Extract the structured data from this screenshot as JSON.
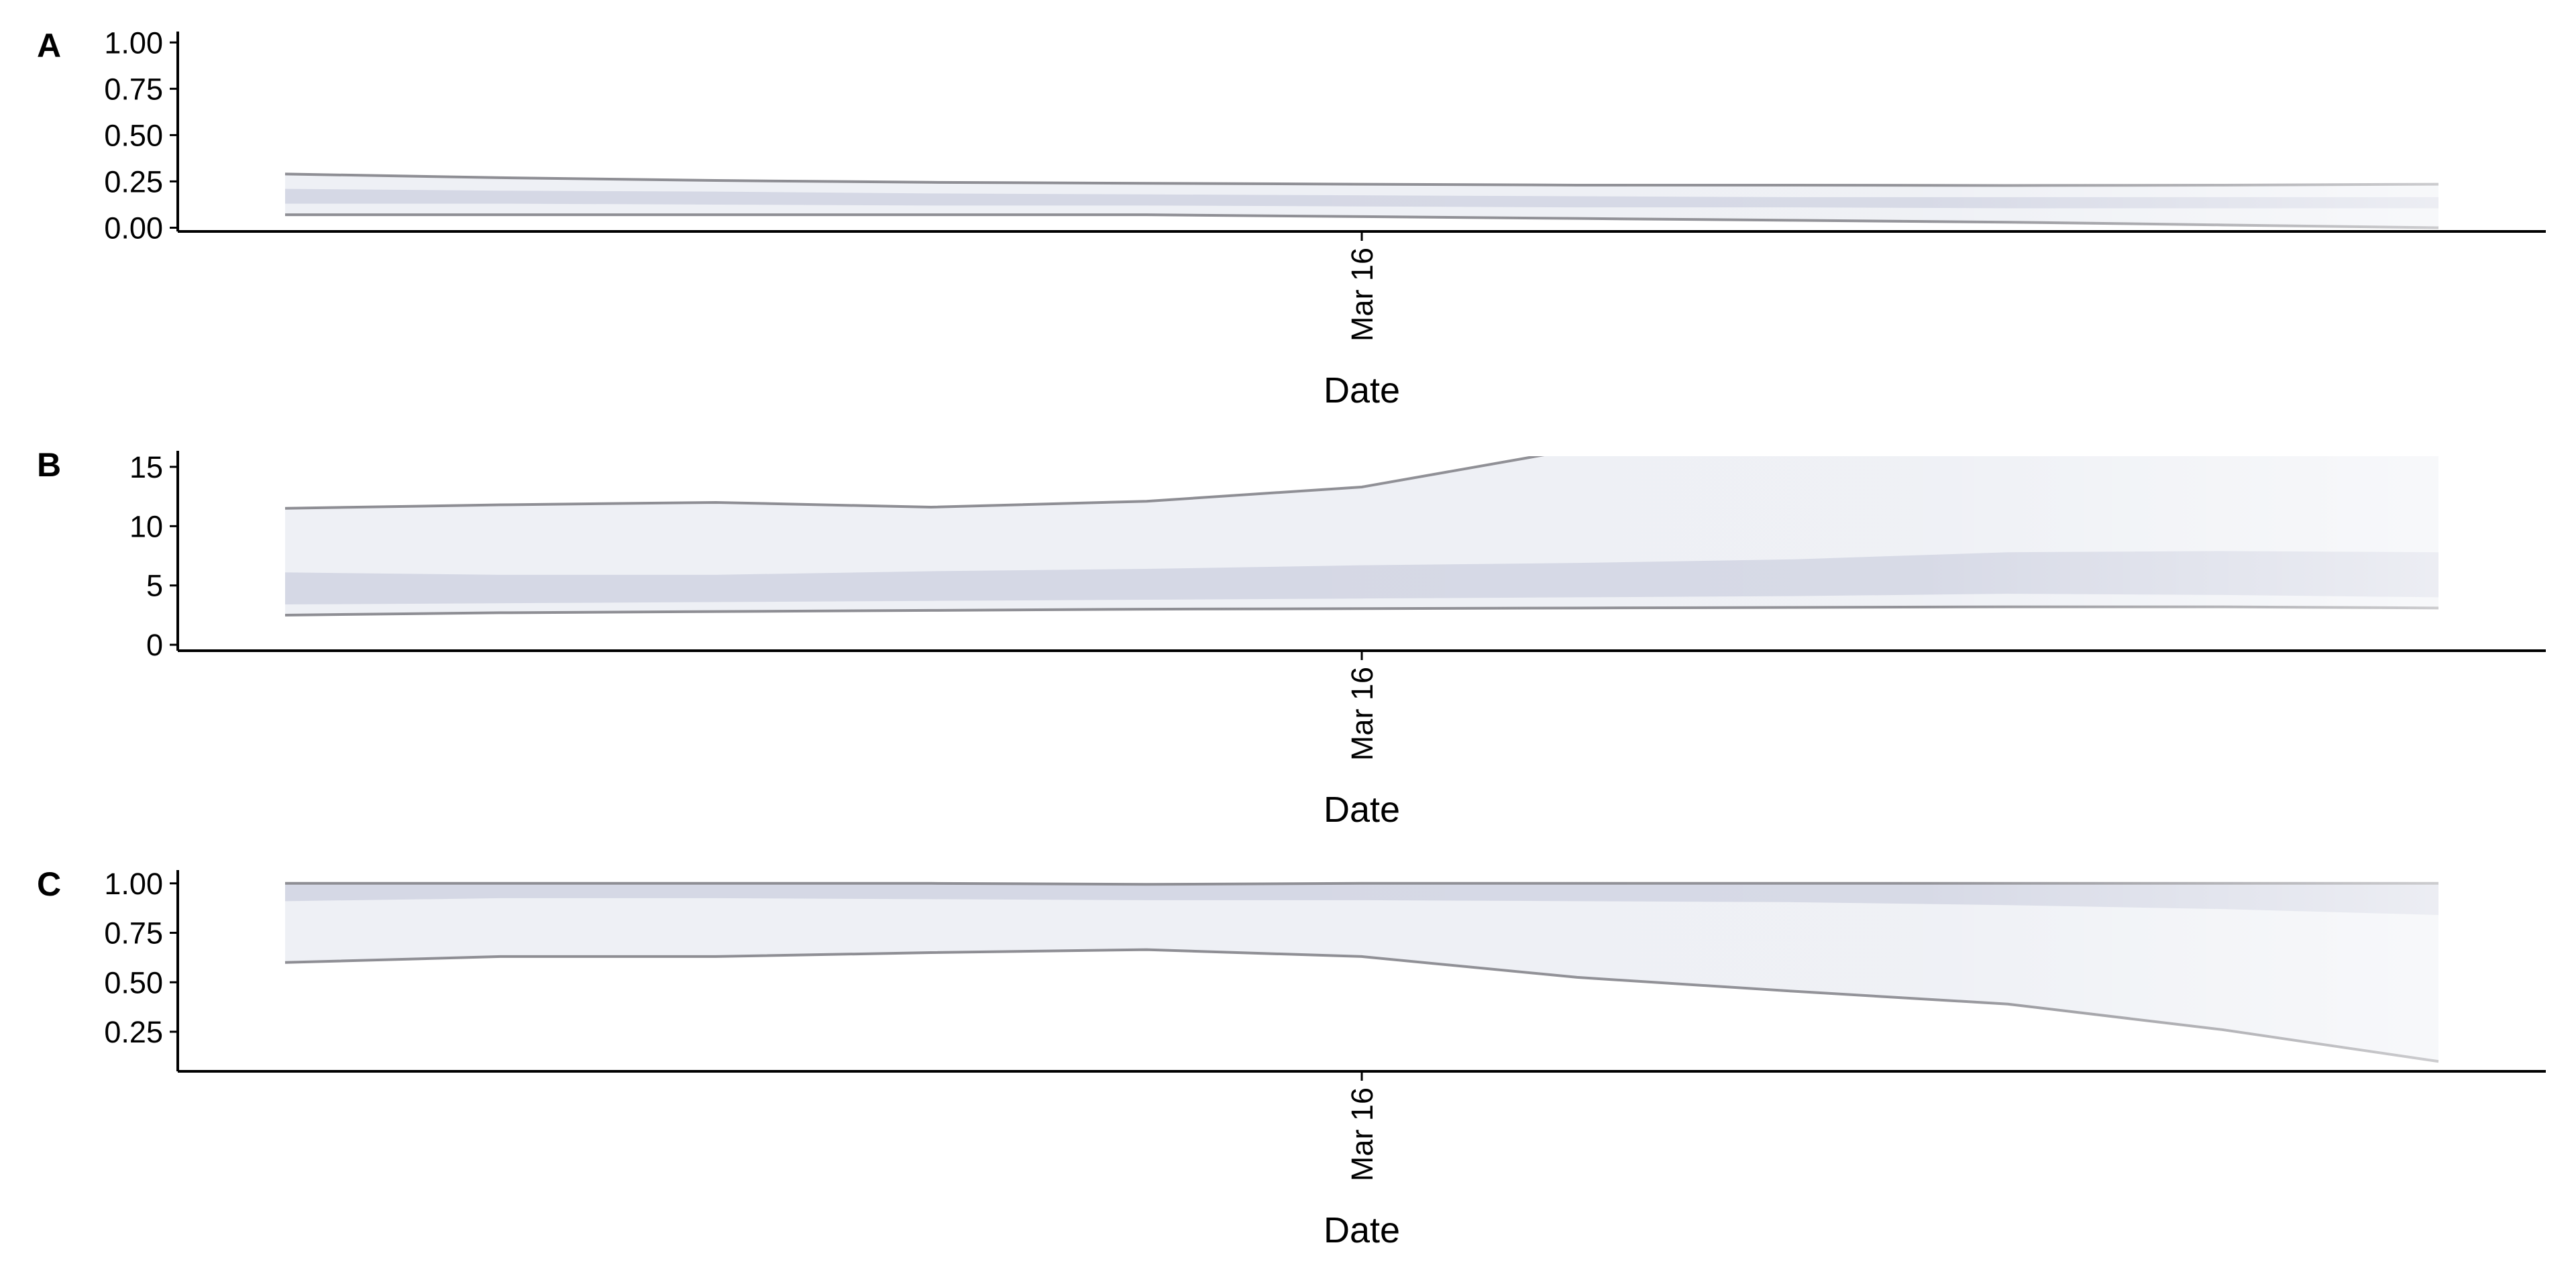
{
  "chart_data": [
    {
      "panel": "A",
      "type": "area",
      "x": [
        "2020-03-11",
        "2020-03-12",
        "2020-03-13",
        "2020-03-14",
        "2020-03-15",
        "2020-03-16",
        "2020-03-17",
        "2020-03-18",
        "2020-03-19",
        "2020-03-20",
        "2020-03-21"
      ],
      "series": [
        {
          "role": "outer_lower",
          "values": [
            0.07,
            0.07,
            0.07,
            0.07,
            0.07,
            0.06,
            0.05,
            0.04,
            0.03,
            0.015,
            0.0
          ]
        },
        {
          "role": "outer_upper",
          "values": [
            0.29,
            0.27,
            0.255,
            0.245,
            0.24,
            0.235,
            0.23,
            0.23,
            0.228,
            0.23,
            0.235
          ]
        },
        {
          "role": "inner_lower",
          "values": [
            0.13,
            0.13,
            0.125,
            0.12,
            0.12,
            0.115,
            0.11,
            0.11,
            0.105,
            0.105,
            0.105
          ]
        },
        {
          "role": "inner_upper",
          "values": [
            0.21,
            0.2,
            0.195,
            0.185,
            0.18,
            0.175,
            0.17,
            0.165,
            0.165,
            0.165,
            0.165
          ]
        }
      ],
      "yticks": [
        "0.00",
        "0.25",
        "0.50",
        "0.75",
        "1.00"
      ],
      "ylim": [
        -0.02,
        1.03
      ],
      "xtick_label": "Mar 16",
      "xlabel": "Date",
      "ylabel": ""
    },
    {
      "panel": "B",
      "type": "area",
      "x": [
        "2020-03-11",
        "2020-03-12",
        "2020-03-13",
        "2020-03-14",
        "2020-03-15",
        "2020-03-16",
        "2020-03-17",
        "2020-03-18",
        "2020-03-19",
        "2020-03-20",
        "2020-03-21"
      ],
      "series": [
        {
          "role": "outer_lower",
          "values": [
            2.5,
            2.7,
            2.8,
            2.9,
            3.0,
            3.05,
            3.1,
            3.15,
            3.2,
            3.2,
            3.1
          ]
        },
        {
          "role": "outer_upper",
          "values": [
            11.5,
            11.8,
            12.0,
            11.6,
            12.1,
            13.3,
            16.5,
            17.0,
            17.5,
            18.0,
            18.5
          ]
        },
        {
          "role": "inner_lower",
          "values": [
            3.4,
            3.5,
            3.6,
            3.7,
            3.8,
            3.9,
            4.0,
            4.1,
            4.3,
            4.2,
            4.0
          ]
        },
        {
          "role": "inner_upper",
          "values": [
            6.1,
            5.9,
            5.9,
            6.2,
            6.4,
            6.7,
            6.9,
            7.2,
            7.8,
            7.9,
            7.8
          ]
        }
      ],
      "yticks": [
        "0",
        "5",
        "10",
        "15"
      ],
      "ylim": [
        -0.5,
        15.9
      ],
      "xtick_label": "Mar 16",
      "xlabel": "Date",
      "ylabel": ""
    },
    {
      "panel": "C",
      "type": "area",
      "x": [
        "2020-03-11",
        "2020-03-12",
        "2020-03-13",
        "2020-03-14",
        "2020-03-15",
        "2020-03-16",
        "2020-03-17",
        "2020-03-18",
        "2020-03-19",
        "2020-03-20",
        "2020-03-21"
      ],
      "series": [
        {
          "role": "outer_lower",
          "values": [
            0.6,
            0.63,
            0.63,
            0.65,
            0.665,
            0.63,
            0.525,
            0.455,
            0.39,
            0.26,
            0.1
          ]
        },
        {
          "role": "outer_upper",
          "values": [
            1.0,
            1.0,
            1.0,
            1.0,
            0.995,
            1.0,
            1.0,
            1.0,
            1.0,
            1.0,
            1.0
          ]
        },
        {
          "role": "inner_lower",
          "values": [
            0.91,
            0.925,
            0.925,
            0.92,
            0.915,
            0.915,
            0.91,
            0.905,
            0.89,
            0.87,
            0.84
          ]
        },
        {
          "role": "inner_upper",
          "values": [
            1.0,
            1.0,
            1.0,
            1.0,
            1.0,
            1.0,
            1.0,
            1.0,
            1.0,
            1.0,
            1.0
          ]
        }
      ],
      "yticks": [
        "0.25",
        "0.50",
        "0.75",
        "1.00"
      ],
      "ylim": [
        0.05,
        1.04
      ],
      "xtick_label": "Mar 16",
      "xlabel": "Date",
      "ylabel": ""
    }
  ],
  "colors": {
    "outer_band": "#eef0f5",
    "inner_band": "#d5d8e5",
    "bound_line": "#8e8e94",
    "axis": "#000000"
  }
}
